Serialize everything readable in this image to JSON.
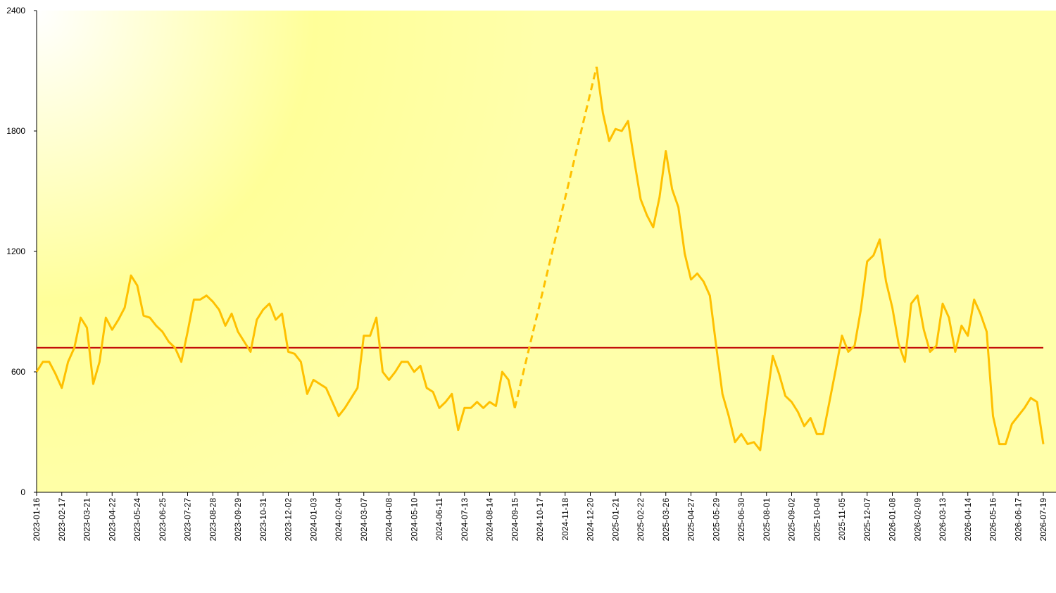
{
  "chart_data": {
    "type": "line",
    "x": [
      "2023-01-16",
      "2023-01-24",
      "2023-02-01",
      "2023-02-09",
      "2023-02-17",
      "2023-02-25",
      "2023-03-05",
      "2023-03-13",
      "2023-03-21",
      "2023-03-29",
      "2023-04-06",
      "2023-04-14",
      "2023-04-22",
      "2023-04-30",
      "2023-05-08",
      "2023-05-16",
      "2023-05-24",
      "2023-06-01",
      "2023-06-09",
      "2023-06-17",
      "2023-06-25",
      "2023-07-03",
      "2023-07-11",
      "2023-07-19",
      "2023-07-27",
      "2023-08-04",
      "2023-08-12",
      "2023-08-20",
      "2023-08-28",
      "2023-09-05",
      "2023-09-13",
      "2023-09-21",
      "2023-09-29",
      "2023-10-07",
      "2023-10-15",
      "2023-10-23",
      "2023-10-31",
      "2023-11-08",
      "2023-11-16",
      "2023-11-24",
      "2023-12-02",
      "2023-12-10",
      "2023-12-18",
      "2023-12-26",
      "2024-01-03",
      "2024-01-11",
      "2024-01-19",
      "2024-01-27",
      "2024-02-04",
      "2024-02-12",
      "2024-02-20",
      "2024-02-28",
      "2024-03-07",
      "2024-03-15",
      "2024-03-23",
      "2024-03-31",
      "2024-04-08",
      "2024-04-16",
      "2024-04-24",
      "2024-05-02",
      "2024-05-10",
      "2024-05-18",
      "2024-05-26",
      "2024-06-03",
      "2024-06-11",
      "2024-06-19",
      "2024-06-27",
      "2024-07-05",
      "2024-07-13",
      "2024-07-21",
      "2024-07-29",
      "2024-08-06",
      "2024-08-14",
      "2024-08-22",
      "2024-08-30",
      "2024-09-07",
      "2024-09-15",
      "2024-09-23",
      "2024-10-01",
      "2024-10-09",
      "2024-10-17",
      "2024-10-25",
      "2024-11-02",
      "2024-11-10",
      "2024-11-18",
      "2024-11-26",
      "2024-12-04",
      "2024-12-12",
      "2024-12-20",
      "2024-12-28",
      "2025-01-05",
      "2025-01-13",
      "2025-01-21",
      "2025-01-29",
      "2025-02-06",
      "2025-02-14",
      "2025-02-22",
      "2025-03-02",
      "2025-03-10",
      "2025-03-18",
      "2025-03-26",
      "2025-04-03",
      "2025-04-11",
      "2025-04-19",
      "2025-04-27",
      "2025-05-05",
      "2025-05-13",
      "2025-05-21",
      "2025-05-29",
      "2025-06-06",
      "2025-06-14",
      "2025-06-22",
      "2025-06-30",
      "2025-07-08",
      "2025-07-16",
      "2025-07-24",
      "2025-08-01",
      "2025-08-09",
      "2025-08-17",
      "2025-08-25",
      "2025-09-02",
      "2025-09-10",
      "2025-09-18",
      "2025-09-26",
      "2025-10-04",
      "2025-10-12",
      "2025-10-20",
      "2025-10-28",
      "2025-11-05",
      "2025-11-13",
      "2025-11-21",
      "2025-11-29",
      "2025-12-07",
      "2025-12-15",
      "2025-12-23",
      "2025-12-31",
      "2026-01-08",
      "2026-01-16",
      "2026-01-24",
      "2026-02-01",
      "2026-02-09",
      "2026-02-17",
      "2026-02-25",
      "2026-03-05",
      "2026-03-13",
      "2026-03-21",
      "2026-03-29",
      "2026-04-06",
      "2026-04-14",
      "2026-04-22",
      "2026-04-30",
      "2026-05-08",
      "2026-05-16",
      "2026-05-24",
      "2026-06-01",
      "2026-06-09",
      "2026-06-17",
      "2026-06-25",
      "2026-07-03",
      "2026-07-11",
      "2026-07-19"
    ],
    "series": [
      {
        "color": "#ffc000",
        "values": [
          600,
          650,
          650,
          590,
          520,
          650,
          720,
          870,
          820,
          540,
          650,
          870,
          810,
          860,
          920,
          1080,
          1030,
          880,
          870,
          830,
          800,
          750,
          720,
          650,
          800,
          960,
          960,
          980,
          950,
          910,
          830,
          890,
          800,
          750,
          700,
          860,
          910,
          940,
          860,
          890,
          700,
          690,
          650,
          490,
          560,
          540,
          520,
          450,
          380,
          420,
          470,
          520,
          780,
          780,
          870,
          600,
          560,
          600,
          650,
          650,
          600,
          630,
          520,
          500,
          420,
          450,
          490,
          310,
          420,
          420,
          450,
          420,
          450,
          430,
          600,
          560,
          420,
          null,
          null,
          null,
          null,
          null,
          null,
          null,
          null,
          null,
          null,
          null,
          null,
          2120,
          1890,
          1750,
          1810,
          1800,
          1850,
          1650,
          1460,
          1380,
          1320,
          1470,
          1700,
          1510,
          1420,
          1190,
          1060,
          1090,
          1050,
          980,
          730,
          490,
          380,
          250,
          290,
          240,
          250,
          210,
          450,
          680,
          590,
          480,
          450,
          400,
          330,
          370,
          290,
          290,
          450,
          610,
          780,
          700,
          730,
          910,
          1150,
          1180,
          1260,
          1050,
          920,
          740,
          650,
          940,
          980,
          810,
          700,
          730,
          940,
          870,
          700,
          830,
          780,
          960,
          890,
          800,
          380,
          240,
          240,
          340,
          380,
          420,
          470,
          450,
          240
        ]
      }
    ],
    "connect_gaps": "dashed",
    "hline": 720,
    "hline_color": "#c00000",
    "xlim": [
      "2023-01-16",
      "2026-07-19"
    ],
    "xticks": [
      "2023-01-16",
      "2023-02-17",
      "2023-03-21",
      "2023-04-22",
      "2023-05-24",
      "2023-06-25",
      "2023-07-27",
      "2023-08-28",
      "2023-09-29",
      "2023-10-31",
      "2023-12-02",
      "2024-01-03",
      "2024-02-04",
      "2024-03-07",
      "2024-04-08",
      "2024-05-10",
      "2024-06-11",
      "2024-07-13",
      "2024-08-14",
      "2024-09-15",
      "2024-10-17",
      "2024-11-18",
      "2024-12-20",
      "2025-01-21",
      "2025-02-22",
      "2025-03-26",
      "2025-04-27",
      "2025-05-29",
      "2025-06-30",
      "2025-08-01",
      "2025-09-02",
      "2025-10-04",
      "2025-11-05",
      "2025-12-07",
      "2026-01-08",
      "2026-02-09",
      "2026-03-13",
      "2026-04-14",
      "2026-05-16",
      "2026-06-17",
      "2026-07-19"
    ],
    "ylim": [
      0,
      2400
    ],
    "yticks": [
      0,
      600,
      1200,
      1800,
      2400
    ],
    "grid": false
  }
}
